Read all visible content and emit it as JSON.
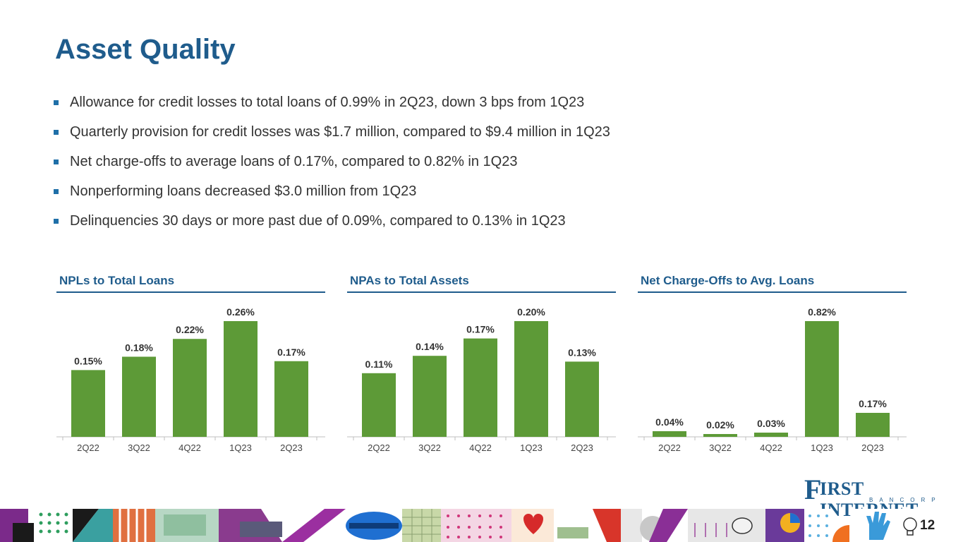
{
  "title": "Asset Quality",
  "bullets": [
    "Allowance for credit losses to total loans of 0.99% in 2Q23, down 3 bps from 1Q23",
    "Quarterly provision for credit losses was $1.7 million, compared to $9.4 million in 1Q23",
    "Net charge-offs to average loans of 0.17%, compared to 0.82% in 1Q23",
    "Nonperforming loans decreased $3.0 million from 1Q23",
    "Delinquencies 30 days or more past due of 0.09%, compared to 0.13% in 1Q23"
  ],
  "colors": {
    "accent": "#1f5c8c",
    "bar": "#5d9a37",
    "bullet": "#1f6fa8"
  },
  "chart_data": [
    {
      "type": "bar",
      "title": "NPLs to Total Loans",
      "categories": [
        "2Q22",
        "3Q22",
        "4Q22",
        "1Q23",
        "2Q23"
      ],
      "values": [
        0.15,
        0.18,
        0.22,
        0.26,
        0.17
      ],
      "value_labels": [
        "0.15%",
        "0.18%",
        "0.22%",
        "0.26%",
        "0.17%"
      ],
      "xlabel": "",
      "ylabel": "",
      "ylim": [
        0,
        0.26
      ]
    },
    {
      "type": "bar",
      "title": "NPAs to Total Assets",
      "categories": [
        "2Q22",
        "3Q22",
        "4Q22",
        "1Q23",
        "2Q23"
      ],
      "values": [
        0.11,
        0.14,
        0.17,
        0.2,
        0.13
      ],
      "value_labels": [
        "0.11%",
        "0.14%",
        "0.17%",
        "0.20%",
        "0.13%"
      ],
      "xlabel": "",
      "ylabel": "",
      "ylim": [
        0,
        0.2
      ]
    },
    {
      "type": "bar",
      "title": "Net Charge-Offs to Avg. Loans",
      "categories": [
        "2Q22",
        "3Q22",
        "4Q22",
        "1Q23",
        "2Q23"
      ],
      "values": [
        0.04,
        0.02,
        0.03,
        0.82,
        0.17
      ],
      "value_labels": [
        "0.04%",
        "0.02%",
        "0.03%",
        "0.82%",
        "0.17%"
      ],
      "xlabel": "",
      "ylabel": "",
      "ylim": [
        0,
        0.82
      ]
    }
  ],
  "logo": {
    "name_first": "F",
    "name_rest": "IRST INTERNET",
    "subtitle": "BANCORP"
  },
  "page_number": "12"
}
